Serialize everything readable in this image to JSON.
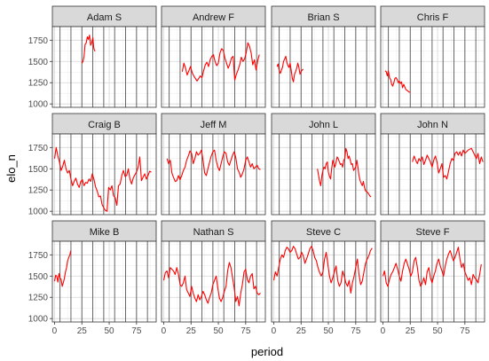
{
  "chart_data": {
    "type": "line",
    "facet_layout": "3 rows x 4 columns (facet_wrap)",
    "xlabel": "period",
    "ylabel": "elo_n",
    "xlim": [
      -2,
      93
    ],
    "ylim": [
      960,
      1910
    ],
    "x_ticks": [
      0,
      25,
      50,
      75
    ],
    "y_ticks": [
      1000,
      1250,
      1500,
      1750
    ],
    "vertical_lines_at": [
      5,
      15,
      25,
      35,
      45,
      55,
      65,
      75,
      85
    ],
    "line_color": "#ff0000",
    "strip_fill": "#d9d9d9",
    "facets": [
      {
        "name": "Adam S",
        "x_start": 25,
        "x_step": 1,
        "values": [
          1480,
          1500,
          1560,
          1700,
          1720,
          1790,
          1760,
          1810,
          1690,
          1720,
          1780,
          1650,
          1620
        ]
      },
      {
        "name": "Andrew F",
        "x_start": 17,
        "x_step": 1.5,
        "values": [
          1380,
          1480,
          1420,
          1340,
          1390,
          1440,
          1370,
          1330,
          1300,
          1270,
          1300,
          1330,
          1310,
          1390,
          1460,
          1490,
          1440,
          1520,
          1560,
          1580,
          1500,
          1450,
          1480,
          1600,
          1650,
          1630,
          1540,
          1480,
          1420,
          1470,
          1540,
          1560,
          1280,
          1350,
          1400,
          1460,
          1550,
          1500,
          1530,
          1600,
          1720,
          1680,
          1600,
          1460,
          1520,
          1400,
          1510,
          1580
        ]
      },
      {
        "name": "Brian S",
        "x_start": 3,
        "x_step": 1,
        "values": [
          1440,
          1470,
          1390,
          1360,
          1400,
          1430,
          1500,
          1530,
          1560,
          1490,
          1450,
          1430,
          1480,
          1390,
          1300,
          1260,
          1350,
          1380,
          1420,
          1480,
          1430,
          1350,
          1380,
          1400,
          1410
        ]
      },
      {
        "name": "Chris F",
        "x_start": 2,
        "x_step": 1,
        "values": [
          1390,
          1380,
          1330,
          1390,
          1310,
          1290,
          1230,
          1210,
          1250,
          1300,
          1310,
          1290,
          1250,
          1270,
          1240,
          1260,
          1190,
          1230,
          1200,
          1170,
          1160,
          1150,
          1140,
          1140
        ]
      },
      {
        "name": "Craig B",
        "x_start": 0,
        "x_step": 1.5,
        "values": [
          1620,
          1750,
          1650,
          1580,
          1480,
          1530,
          1600,
          1500,
          1450,
          1480,
          1380,
          1300,
          1350,
          1390,
          1320,
          1280,
          1350,
          1370,
          1300,
          1340,
          1330,
          1380,
          1350,
          1440,
          1380,
          1290,
          1240,
          1170,
          1180,
          1080,
          1040,
          1010,
          1000,
          1280,
          1250,
          1300,
          1180,
          1160,
          1070,
          1300,
          1320,
          1420,
          1480,
          1410,
          1420,
          1500,
          1380,
          1320,
          1390,
          1430,
          1460,
          1520,
          1640,
          1360,
          1400,
          1440,
          1380,
          1420,
          1470,
          1460
        ]
      },
      {
        "name": "Jeff M",
        "x_start": 3,
        "x_step": 1.5,
        "values": [
          1620,
          1560,
          1600,
          1450,
          1400,
          1350,
          1360,
          1420,
          1370,
          1420,
          1480,
          1520,
          1600,
          1650,
          1710,
          1680,
          1560,
          1620,
          1700,
          1660,
          1680,
          1720,
          1600,
          1450,
          1420,
          1500,
          1580,
          1650,
          1700,
          1720,
          1600,
          1520,
          1480,
          1560,
          1640,
          1700,
          1680,
          1580,
          1540,
          1600,
          1660,
          1700,
          1630,
          1500,
          1460,
          1400,
          1440,
          1500,
          1600,
          1640,
          1580,
          1520,
          1560,
          1500,
          1520,
          1540,
          1500,
          1490
        ]
      },
      {
        "name": "John L",
        "x_start": 40,
        "x_step": 1,
        "values": [
          1500,
          1420,
          1350,
          1300,
          1420,
          1480,
          1520,
          1500,
          1560,
          1580,
          1460,
          1410,
          1380,
          1500,
          1600,
          1560,
          1520,
          1580,
          1640,
          1620,
          1580,
          1550,
          1560,
          1520,
          1600,
          1620,
          1740,
          1700,
          1620,
          1650,
          1600,
          1550,
          1560,
          1480,
          1500,
          1520,
          1600,
          1520,
          1420,
          1360,
          1330,
          1300,
          1350,
          1280,
          1240,
          1230,
          1220,
          1200,
          1180,
          1170
        ]
      },
      {
        "name": "John N",
        "x_start": 27,
        "x_step": 1.5,
        "values": [
          1580,
          1650,
          1600,
          1560,
          1620,
          1590,
          1640,
          1550,
          1600,
          1660,
          1620,
          1580,
          1520,
          1600,
          1650,
          1580,
          1450,
          1500,
          1560,
          1400,
          1420,
          1380,
          1470,
          1560,
          1620,
          1600,
          1680,
          1700,
          1660,
          1700,
          1650,
          1720,
          1680,
          1700,
          1720,
          1730,
          1740,
          1700,
          1660,
          1620,
          1680,
          1560,
          1640,
          1580
        ]
      },
      {
        "name": "Mike B",
        "x_start": 0,
        "x_step": 1,
        "values": [
          1440,
          1510,
          1500,
          1430,
          1530,
          1480,
          1460,
          1380,
          1420,
          1470,
          1550,
          1600,
          1680,
          1720,
          1750,
          1800
        ]
      },
      {
        "name": "Nathan S",
        "x_start": 0,
        "x_step": 1.5,
        "values": [
          1450,
          1540,
          1560,
          1480,
          1600,
          1580,
          1560,
          1520,
          1600,
          1520,
          1400,
          1380,
          1420,
          1500,
          1340,
          1300,
          1260,
          1380,
          1300,
          1240,
          1200,
          1280,
          1220,
          1260,
          1320,
          1280,
          1220,
          1180,
          1250,
          1300,
          1400,
          1450,
          1500,
          1360,
          1240,
          1200,
          1250,
          1320,
          1380,
          1560,
          1660,
          1600,
          1480,
          1360,
          1200,
          1260,
          1150,
          1300,
          1400,
          1550,
          1580,
          1460,
          1420,
          1500,
          1530,
          1350,
          1380,
          1300,
          1280,
          1300
        ]
      },
      {
        "name": "Steve C",
        "x_start": 0,
        "x_step": 1.5,
        "values": [
          1450,
          1550,
          1500,
          1600,
          1700,
          1750,
          1720,
          1800,
          1840,
          1820,
          1780,
          1800,
          1850,
          1820,
          1760,
          1700,
          1720,
          1780,
          1740,
          1650,
          1700,
          1760,
          1820,
          1850,
          1800,
          1720,
          1680,
          1600,
          1540,
          1500,
          1550,
          1700,
          1780,
          1640,
          1500,
          1420,
          1480,
          1550,
          1620,
          1450,
          1380,
          1420,
          1560,
          1500,
          1420,
          1380,
          1450,
          1300,
          1420,
          1500,
          1600,
          1700,
          1520,
          1400,
          1440,
          1550,
          1650,
          1700,
          1740,
          1800,
          1830
        ]
      },
      {
        "name": "Steve F",
        "x_start": 0,
        "x_step": 1.5,
        "values": [
          1500,
          1560,
          1420,
          1380,
          1460,
          1520,
          1550,
          1600,
          1650,
          1580,
          1500,
          1440,
          1560,
          1650,
          1700,
          1640,
          1580,
          1500,
          1550,
          1680,
          1720,
          1600,
          1450,
          1380,
          1420,
          1480,
          1400,
          1550,
          1600,
          1480,
          1420,
          1500,
          1560,
          1650,
          1700,
          1620,
          1560,
          1500,
          1620,
          1700,
          1760,
          1800,
          1740,
          1680,
          1720,
          1780,
          1840,
          1700,
          1600,
          1650,
          1550,
          1500,
          1450,
          1480,
          1400,
          1520,
          1480,
          1460,
          1420,
          1520,
          1640
        ]
      }
    ]
  }
}
